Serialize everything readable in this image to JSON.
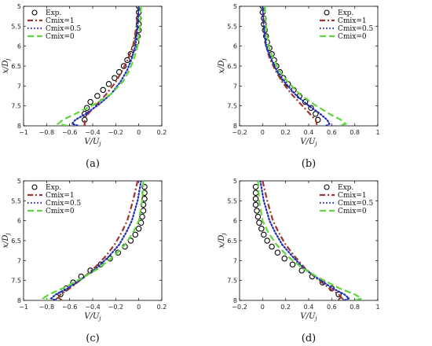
{
  "chart_data": [
    {
      "type": "line",
      "panel_label": "(a)",
      "xlabel": "V/U_j",
      "ylabel": "x/D_j",
      "xlim": [
        -1,
        0.2
      ],
      "xticks": [
        -1,
        -0.8,
        -0.6,
        -0.4,
        -0.2,
        0,
        0.2
      ],
      "xtick_labels": [
        "−1",
        "−0.8",
        "−0.6",
        "−0.4",
        "−0.2",
        "0",
        "0.2"
      ],
      "ylim": [
        5,
        8
      ],
      "yticks": [
        5,
        5.5,
        6,
        6.5,
        7,
        7.5,
        8
      ],
      "ytick_labels": [
        "5",
        "5.5",
        "6",
        "6.5",
        "7",
        "7.5",
        "8"
      ],
      "y_reversed": true,
      "legend": {
        "position": "top-left",
        "entries": [
          "Exp.",
          "Cmix=1",
          "Cmix=0.5",
          "Cmix=0"
        ]
      },
      "series": [
        {
          "name": "Exp.",
          "style": "markers",
          "color": "#000000",
          "x": [
            0,
            0,
            0,
            0,
            0,
            -0.01,
            -0.02,
            -0.04,
            -0.07,
            -0.1,
            -0.13,
            -0.17,
            -0.21,
            -0.26,
            -0.31,
            -0.36,
            -0.42,
            -0.45,
            -0.47,
            -0.47
          ],
          "y": [
            5.0,
            5.15,
            5.3,
            5.45,
            5.6,
            5.75,
            5.9,
            6.05,
            6.2,
            6.35,
            6.5,
            6.65,
            6.8,
            6.95,
            7.1,
            7.25,
            7.4,
            7.55,
            7.7,
            7.85
          ]
        },
        {
          "name": "Cmix=1",
          "style": "dash-dot",
          "color": "#a0342c",
          "x": [
            0,
            -0.02,
            -0.05,
            -0.09,
            -0.14,
            -0.2,
            -0.28,
            -0.36,
            -0.44,
            -0.47,
            -0.47,
            -0.47
          ],
          "y": [
            5.0,
            5.5,
            6.0,
            6.3,
            6.6,
            6.9,
            7.2,
            7.45,
            7.7,
            7.82,
            7.95,
            8.0
          ]
        },
        {
          "name": "Cmix=0.5",
          "style": "dotted",
          "color": "#1f2fb8",
          "x": [
            0,
            -0.01,
            -0.03,
            -0.06,
            -0.1,
            -0.16,
            -0.24,
            -0.34,
            -0.46,
            -0.55,
            -0.58,
            -0.52
          ],
          "y": [
            5.0,
            5.5,
            6.0,
            6.3,
            6.6,
            6.9,
            7.2,
            7.45,
            7.7,
            7.85,
            7.95,
            8.0
          ]
        },
        {
          "name": "Cmix=0",
          "style": "dashed",
          "color": "#5fd63a",
          "x": [
            0.02,
            0.01,
            -0.01,
            -0.04,
            -0.08,
            -0.14,
            -0.24,
            -0.38,
            -0.55,
            -0.66,
            -0.7,
            -0.62
          ],
          "y": [
            5.0,
            5.5,
            6.0,
            6.3,
            6.6,
            6.9,
            7.2,
            7.45,
            7.7,
            7.85,
            7.95,
            8.0
          ]
        }
      ]
    },
    {
      "type": "line",
      "panel_label": "(b)",
      "xlabel": "V/U_j",
      "ylabel": "x/D_j",
      "xlim": [
        -0.2,
        1
      ],
      "xticks": [
        -0.2,
        0,
        0.2,
        0.4,
        0.6,
        0.8,
        1
      ],
      "xtick_labels": [
        "−0.2",
        "0",
        "0.2",
        "0.4",
        "0.6",
        "0.8",
        "1"
      ],
      "ylim": [
        5,
        8
      ],
      "yticks": [
        5,
        5.5,
        6,
        6.5,
        7,
        7.5,
        8
      ],
      "ytick_labels": [
        "5",
        "5.5",
        "6",
        "6.5",
        "7",
        "7.5",
        "8"
      ],
      "y_reversed": true,
      "legend": {
        "position": "top-right",
        "entries": [
          "Exp.",
          "Cmix=1",
          "Cmix=0.5",
          "Cmix=0"
        ]
      },
      "series": [
        {
          "name": "Exp.",
          "style": "markers",
          "color": "#000000",
          "x": [
            0,
            0,
            0.01,
            0.01,
            0.02,
            0.03,
            0.04,
            0.06,
            0.08,
            0.1,
            0.12,
            0.15,
            0.18,
            0.22,
            0.27,
            0.32,
            0.37,
            0.42,
            0.46,
            0.48
          ],
          "y": [
            5.0,
            5.15,
            5.3,
            5.45,
            5.6,
            5.75,
            5.9,
            6.05,
            6.2,
            6.35,
            6.5,
            6.65,
            6.8,
            6.95,
            7.1,
            7.25,
            7.4,
            7.55,
            7.7,
            7.85
          ]
        },
        {
          "name": "Cmix=1",
          "style": "dash-dot",
          "color": "#a0342c",
          "x": [
            0,
            0.01,
            0.03,
            0.06,
            0.11,
            0.17,
            0.25,
            0.33,
            0.41,
            0.46,
            0.47,
            0.47
          ],
          "y": [
            5.0,
            5.5,
            6.0,
            6.3,
            6.6,
            6.9,
            7.2,
            7.45,
            7.7,
            7.85,
            7.95,
            8.0
          ]
        },
        {
          "name": "Cmix=0.5",
          "style": "dotted",
          "color": "#1f2fb8",
          "x": [
            0,
            0.01,
            0.03,
            0.07,
            0.12,
            0.19,
            0.28,
            0.38,
            0.5,
            0.56,
            0.58,
            0.55
          ],
          "y": [
            5.0,
            5.5,
            6.0,
            6.3,
            6.6,
            6.9,
            7.2,
            7.45,
            7.7,
            7.85,
            7.95,
            8.0
          ]
        },
        {
          "name": "Cmix=0",
          "style": "dashed",
          "color": "#5fd63a",
          "x": [
            0.02,
            0.03,
            0.05,
            0.09,
            0.14,
            0.22,
            0.32,
            0.44,
            0.58,
            0.68,
            0.72,
            0.66
          ],
          "y": [
            5.0,
            5.5,
            6.0,
            6.3,
            6.6,
            6.9,
            7.2,
            7.45,
            7.7,
            7.85,
            7.95,
            8.0
          ]
        }
      ]
    },
    {
      "type": "line",
      "panel_label": "(c)",
      "xlabel": "V/U_j",
      "ylabel": "x/D_j",
      "xlim": [
        -1,
        0.2
      ],
      "xticks": [
        -1,
        -0.8,
        -0.6,
        -0.4,
        -0.2,
        0,
        0.2
      ],
      "xtick_labels": [
        "−1",
        "−0.8",
        "−0.6",
        "−0.4",
        "−0.2",
        "0",
        "0.2"
      ],
      "ylim": [
        5,
        8
      ],
      "yticks": [
        5,
        5.5,
        6,
        6.5,
        7,
        7.5,
        8
      ],
      "ytick_labels": [
        "5",
        "5.5",
        "6",
        "6.5",
        "7",
        "7.5",
        "8"
      ],
      "y_reversed": true,
      "legend": {
        "position": "top-left",
        "entries": [
          "Exp.",
          "Cmix=1",
          "Cmix=0.5",
          "Cmix=0"
        ]
      },
      "series": [
        {
          "name": "Exp.",
          "style": "markers",
          "color": "#000000",
          "x": [
            0.05,
            0.05,
            0.05,
            0.04,
            0.04,
            0.03,
            0.02,
            0,
            -0.03,
            -0.07,
            -0.12,
            -0.18,
            -0.25,
            -0.33,
            -0.42,
            -0.5,
            -0.57,
            -0.63,
            -0.68,
            -0.7
          ],
          "y": [
            5.15,
            5.3,
            5.45,
            5.6,
            5.75,
            5.9,
            6.05,
            6.2,
            6.35,
            6.5,
            6.65,
            6.8,
            6.95,
            7.1,
            7.25,
            7.4,
            7.55,
            7.7,
            7.85,
            8.0
          ]
        },
        {
          "name": "Cmix=1",
          "style": "dash-dot",
          "color": "#a0342c",
          "x": [
            -0.01,
            -0.05,
            -0.1,
            -0.15,
            -0.21,
            -0.29,
            -0.39,
            -0.49,
            -0.6,
            -0.68,
            -0.7,
            -0.66
          ],
          "y": [
            5.0,
            5.5,
            6.0,
            6.3,
            6.6,
            6.9,
            7.2,
            7.45,
            7.7,
            7.85,
            7.95,
            8.0
          ]
        },
        {
          "name": "Cmix=0.5",
          "style": "dotted",
          "color": "#1f2fb8",
          "x": [
            0.02,
            -0.01,
            -0.06,
            -0.11,
            -0.17,
            -0.26,
            -0.37,
            -0.49,
            -0.62,
            -0.72,
            -0.76,
            -0.72
          ],
          "y": [
            5.0,
            5.5,
            6.0,
            6.3,
            6.6,
            6.9,
            7.2,
            7.45,
            7.7,
            7.85,
            7.95,
            8.0
          ]
        },
        {
          "name": "Cmix=0",
          "style": "dashed",
          "color": "#5fd63a",
          "x": [
            0.04,
            0.03,
            0,
            -0.05,
            -0.12,
            -0.22,
            -0.35,
            -0.5,
            -0.66,
            -0.78,
            -0.83,
            -0.78
          ],
          "y": [
            5.0,
            5.5,
            6.0,
            6.3,
            6.6,
            6.9,
            7.2,
            7.45,
            7.7,
            7.85,
            7.95,
            8.0
          ]
        }
      ]
    },
    {
      "type": "line",
      "panel_label": "(d)",
      "xlabel": "V/U_j",
      "ylabel": "x/D_j",
      "xlim": [
        -0.2,
        1
      ],
      "xticks": [
        -0.2,
        0,
        0.2,
        0.4,
        0.6,
        0.8,
        1
      ],
      "xtick_labels": [
        "−0.2",
        "0",
        "0.2",
        "0.4",
        "0.6",
        "0.8",
        "1"
      ],
      "ylim": [
        5,
        8
      ],
      "yticks": [
        5,
        5.5,
        6,
        6.5,
        7,
        7.5,
        8
      ],
      "ytick_labels": [
        "5",
        "5.5",
        "6",
        "6.5",
        "7",
        "7.5",
        "8"
      ],
      "y_reversed": true,
      "legend": {
        "position": "top-right",
        "entries": [
          "Exp.",
          "Cmix=1",
          "Cmix=0.5",
          "Cmix=0"
        ]
      },
      "series": [
        {
          "name": "Exp.",
          "style": "markers",
          "color": "#000000",
          "x": [
            -0.06,
            -0.06,
            -0.06,
            -0.06,
            -0.05,
            -0.04,
            -0.03,
            -0.01,
            0.01,
            0.04,
            0.08,
            0.13,
            0.19,
            0.26,
            0.34,
            0.43,
            0.52,
            0.6,
            0.66,
            0.68
          ],
          "y": [
            5.15,
            5.3,
            5.45,
            5.6,
            5.75,
            5.9,
            6.05,
            6.2,
            6.35,
            6.5,
            6.65,
            6.8,
            6.95,
            7.1,
            7.25,
            7.4,
            7.55,
            7.7,
            7.85,
            8.0
          ]
        },
        {
          "name": "Cmix=1",
          "style": "dash-dot",
          "color": "#a0342c",
          "x": [
            0,
            0.04,
            0.09,
            0.14,
            0.2,
            0.28,
            0.37,
            0.47,
            0.58,
            0.66,
            0.69,
            0.66
          ],
          "y": [
            5.0,
            5.5,
            6.0,
            6.3,
            6.6,
            6.9,
            7.2,
            7.45,
            7.7,
            7.85,
            7.95,
            8.0
          ]
        },
        {
          "name": "Cmix=0.5",
          "style": "dotted",
          "color": "#1f2fb8",
          "x": [
            -0.02,
            0.01,
            0.06,
            0.11,
            0.17,
            0.26,
            0.36,
            0.48,
            0.61,
            0.71,
            0.75,
            0.71
          ],
          "y": [
            5.0,
            5.5,
            6.0,
            6.3,
            6.6,
            6.9,
            7.2,
            7.45,
            7.7,
            7.85,
            7.95,
            8.0
          ]
        },
        {
          "name": "Cmix=0",
          "style": "dashed",
          "color": "#5fd63a",
          "x": [
            -0.04,
            -0.03,
            0,
            0.05,
            0.12,
            0.22,
            0.35,
            0.5,
            0.67,
            0.8,
            0.86,
            0.8
          ],
          "y": [
            5.0,
            5.5,
            6.0,
            6.3,
            6.6,
            6.9,
            7.2,
            7.45,
            7.7,
            7.85,
            7.95,
            8.0
          ]
        }
      ]
    }
  ]
}
